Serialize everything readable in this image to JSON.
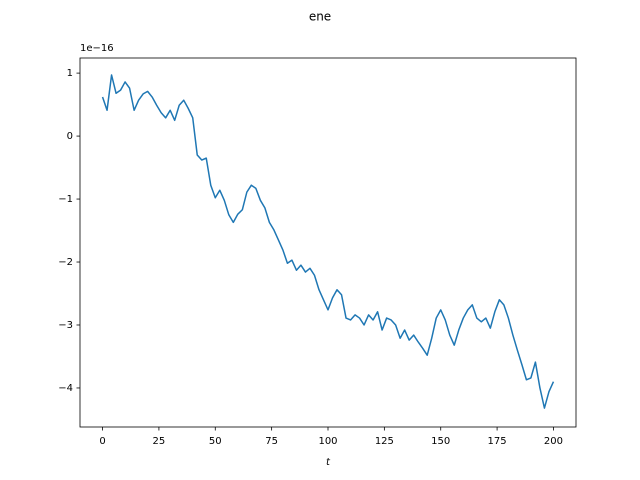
{
  "chart_data": {
    "type": "line",
    "title": "ene",
    "x_label": "t",
    "y_offset_label": "1e−16",
    "x": [
      0,
      2,
      4,
      6,
      8,
      10,
      12,
      14,
      16,
      18,
      20,
      22,
      24,
      26,
      28,
      30,
      32,
      34,
      36,
      38,
      40,
      42,
      44,
      46,
      48,
      50,
      52,
      54,
      56,
      58,
      60,
      62,
      64,
      66,
      68,
      70,
      72,
      74,
      76,
      78,
      80,
      82,
      84,
      86,
      88,
      90,
      92,
      94,
      96,
      98,
      100,
      102,
      104,
      106,
      108,
      110,
      112,
      114,
      116,
      118,
      120,
      122,
      124,
      126,
      128,
      130,
      132,
      134,
      136,
      138,
      140,
      142,
      144,
      146,
      148,
      150,
      152,
      154,
      156,
      158,
      160,
      162,
      164,
      166,
      168,
      170,
      172,
      174,
      176,
      178,
      180,
      182,
      184,
      186,
      188,
      190,
      192,
      194,
      196,
      198,
      200
    ],
    "series": [
      {
        "color": "#1f77b4",
        "values": [
          0.62,
          0.41,
          0.97,
          0.68,
          0.73,
          0.86,
          0.76,
          0.41,
          0.57,
          0.67,
          0.71,
          0.62,
          0.49,
          0.37,
          0.29,
          0.41,
          0.25,
          0.49,
          0.57,
          0.44,
          0.29,
          -0.3,
          -0.38,
          -0.35,
          -0.78,
          -0.98,
          -0.86,
          -1.02,
          -1.25,
          -1.37,
          -1.24,
          -1.17,
          -0.89,
          -0.78,
          -0.83,
          -1.02,
          -1.14,
          -1.37,
          -1.49,
          -1.65,
          -1.81,
          -2.02,
          -1.97,
          -2.13,
          -2.05,
          -2.16,
          -2.1,
          -2.21,
          -2.44,
          -2.6,
          -2.76,
          -2.57,
          -2.44,
          -2.52,
          -2.89,
          -2.92,
          -2.84,
          -2.89,
          -3.0,
          -2.84,
          -2.92,
          -2.79,
          -3.08,
          -2.89,
          -2.92,
          -3.0,
          -3.21,
          -3.08,
          -3.24,
          -3.16,
          -3.27,
          -3.37,
          -3.48,
          -3.21,
          -2.89,
          -2.76,
          -2.92,
          -3.16,
          -3.32,
          -3.08,
          -2.89,
          -2.76,
          -2.68,
          -2.89,
          -2.95,
          -2.89,
          -3.05,
          -2.79,
          -2.6,
          -2.68,
          -2.89,
          -3.16,
          -3.4,
          -3.63,
          -3.87,
          -3.84,
          -3.59,
          -4.0,
          -4.32,
          -4.06,
          -3.9
        ]
      }
    ],
    "xlim": [
      -10,
      210
    ],
    "xticks": [
      0,
      25,
      50,
      75,
      100,
      125,
      150,
      175,
      200
    ],
    "ylim": [
      -4.62,
      1.24
    ],
    "yticks": [
      {
        "value": -4,
        "label": "−4"
      },
      {
        "value": -3,
        "label": "−3"
      },
      {
        "value": -2,
        "label": "−2"
      },
      {
        "value": -1,
        "label": "−1"
      },
      0,
      1
    ]
  }
}
